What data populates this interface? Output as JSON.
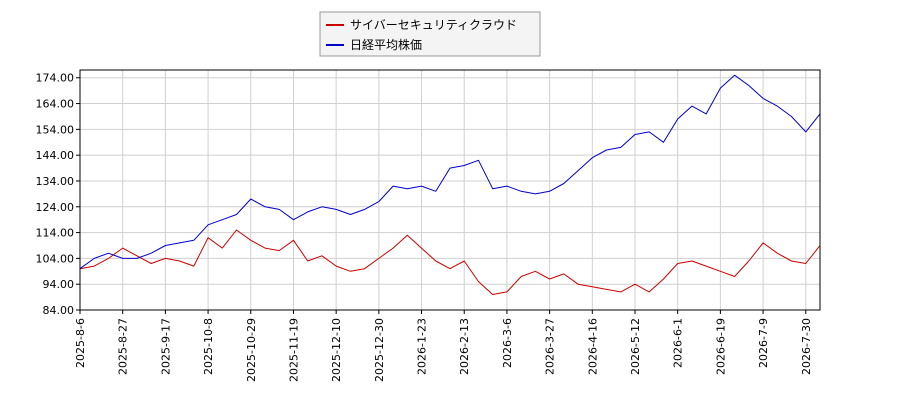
{
  "chart_data": {
    "type": "line",
    "legend": {
      "placement": "top-center"
    },
    "grid": true,
    "ylim": [
      84.0,
      177.0
    ],
    "y_ticks": [
      "84.00",
      "94.00",
      "104.00",
      "114.00",
      "124.00",
      "134.00",
      "144.00",
      "154.00",
      "164.00",
      "174.00"
    ],
    "x_ticks": [
      "2025-8-6",
      "2025-8-27",
      "2025-9-17",
      "2025-10-8",
      "2025-10-29",
      "2025-11-19",
      "2025-12-10",
      "2025-12-30",
      "2026-1-23",
      "2026-2-13",
      "2026-3-6",
      "2026-3-27",
      "2026-4-16",
      "2026-5-12",
      "2026-6-1",
      "2026-6-19",
      "2026-7-9",
      "2026-7-30"
    ],
    "x": [
      "2025-8-6",
      "2025-8-13",
      "2025-8-20",
      "2025-8-27",
      "2025-9-3",
      "2025-9-10",
      "2025-9-17",
      "2025-9-24",
      "2025-10-1",
      "2025-10-8",
      "2025-10-15",
      "2025-10-22",
      "2025-10-29",
      "2025-11-5",
      "2025-11-12",
      "2025-11-19",
      "2025-11-26",
      "2025-12-3",
      "2025-12-10",
      "2025-12-17",
      "2025-12-24",
      "2025-12-30",
      "2026-1-8",
      "2026-1-15",
      "2026-1-23",
      "2026-1-30",
      "2026-2-6",
      "2026-2-13",
      "2026-2-20",
      "2026-2-27",
      "2026-3-6",
      "2026-3-13",
      "2026-3-20",
      "2026-3-27",
      "2026-4-3",
      "2026-4-10",
      "2026-4-16",
      "2026-4-24",
      "2026-5-1",
      "2026-5-12",
      "2026-5-19",
      "2026-5-26",
      "2026-6-1",
      "2026-6-8",
      "2026-6-15",
      "2026-6-19",
      "2026-6-26",
      "2026-7-3",
      "2026-7-9",
      "2026-7-16",
      "2026-7-23",
      "2026-7-30",
      "2026-8-4"
    ],
    "series": [
      {
        "name": "サイバーセキュリティクラウド",
        "color": "#cc0000",
        "values": [
          100,
          101,
          104,
          108,
          105,
          102,
          104,
          103,
          101,
          112,
          108,
          115,
          111,
          108,
          107,
          111,
          103,
          105,
          101,
          99,
          100,
          104,
          108,
          113,
          108,
          103,
          100,
          103,
          95,
          90,
          91,
          97,
          99,
          96,
          98,
          94,
          93,
          92,
          91,
          94,
          91,
          96,
          102,
          103,
          101,
          99,
          97,
          103,
          110,
          106,
          103,
          102,
          109
        ]
      },
      {
        "name": "日経平均株価",
        "color": "#0000cc",
        "values": [
          100,
          104,
          106,
          104,
          104,
          106,
          109,
          110,
          111,
          117,
          119,
          121,
          127,
          124,
          123,
          119,
          122,
          124,
          123,
          121,
          123,
          126,
          132,
          131,
          132,
          130,
          139,
          140,
          142,
          131,
          132,
          130,
          129,
          130,
          133,
          138,
          143,
          146,
          147,
          152,
          153,
          149,
          158,
          163,
          160,
          170,
          175,
          171,
          166,
          163,
          159,
          153,
          160
        ]
      }
    ]
  }
}
